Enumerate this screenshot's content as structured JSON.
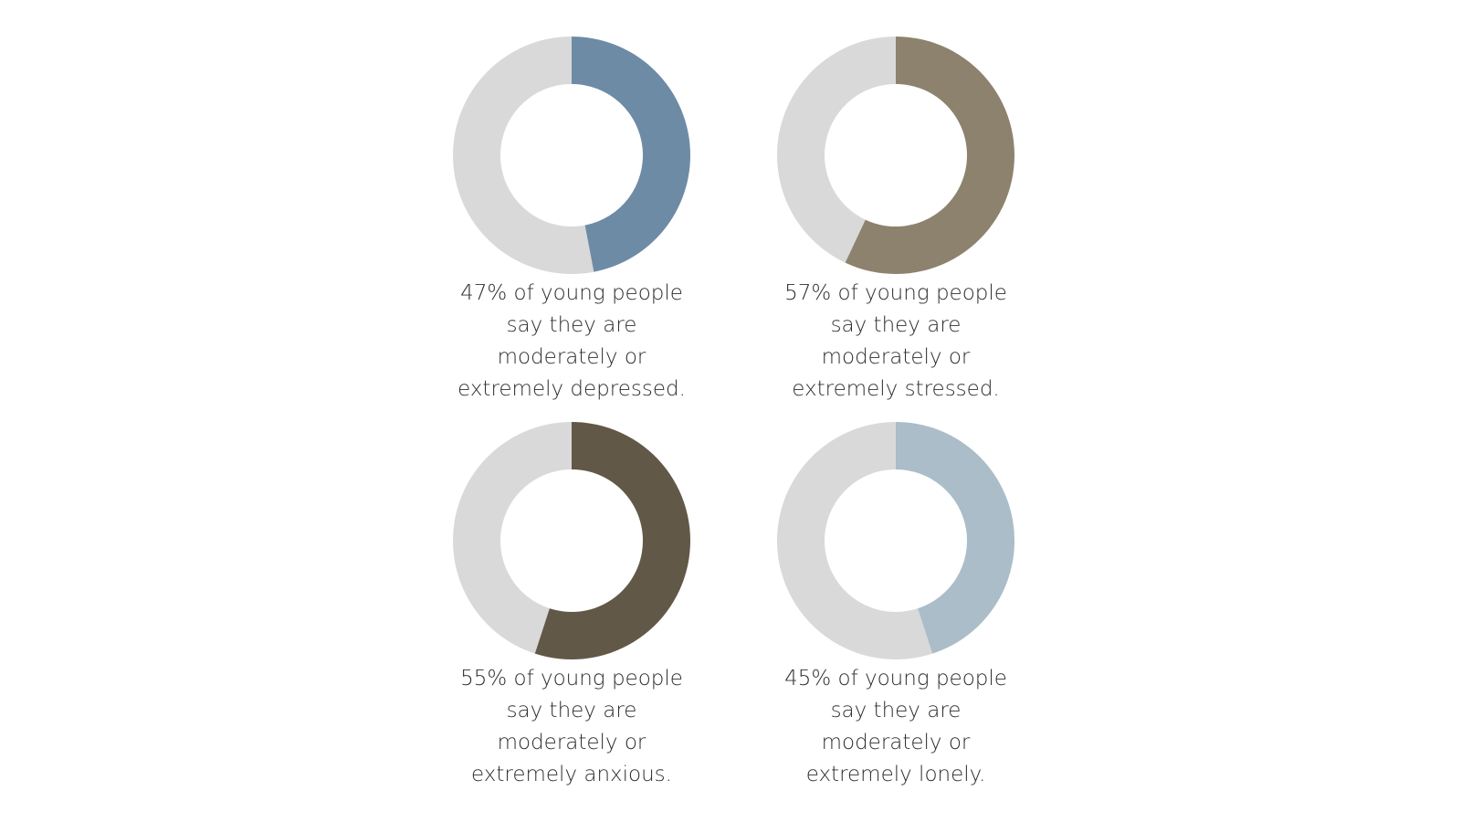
{
  "chart_data": [
    {
      "type": "pie",
      "values": [
        47,
        53
      ],
      "colors": [
        "#6e8ba6",
        "#d9d9d9"
      ],
      "caption": [
        "47% of young people",
        "say they are",
        "moderately or",
        "extremely depressed."
      ]
    },
    {
      "type": "pie",
      "values": [
        57,
        43
      ],
      "colors": [
        "#8d826d",
        "#d9d9d9"
      ],
      "caption": [
        "57% of young people",
        "say they are",
        "moderately or",
        "extremely stressed."
      ]
    },
    {
      "type": "pie",
      "values": [
        55,
        45
      ],
      "colors": [
        "#625847",
        "#d9d9d9"
      ],
      "caption": [
        "55% of young people",
        "say they are",
        "moderately or",
        "extremely anxious."
      ]
    },
    {
      "type": "pie",
      "values": [
        45,
        55
      ],
      "colors": [
        "#aabdc8",
        "#d9d9d9"
      ],
      "caption": [
        "45% of young people",
        "say they are",
        "moderately or",
        "extremely lonely."
      ]
    }
  ]
}
